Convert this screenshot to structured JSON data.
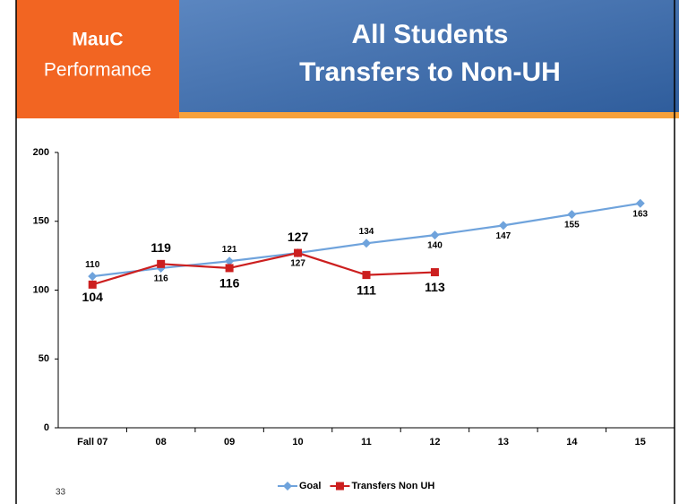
{
  "header": {
    "org": "MauC",
    "subtitle": "Performance",
    "title_line1": "All Students",
    "title_line2": "Transfers to Non-UH"
  },
  "slide_number": "33",
  "chart_data": {
    "type": "line",
    "categories": [
      "Fall 07",
      "08",
      "09",
      "10",
      "11",
      "12",
      "13",
      "14",
      "15"
    ],
    "series": [
      {
        "name": "Goal",
        "color": "#6fa3dc",
        "marker": "diamond",
        "values": [
          110,
          116,
          121,
          127,
          134,
          140,
          147,
          155,
          163
        ]
      },
      {
        "name": "Transfers Non UH",
        "color": "#cc1f1f",
        "marker": "square",
        "values": [
          104,
          119,
          116,
          127,
          111,
          113,
          null,
          null,
          null
        ]
      }
    ],
    "ylim": [
      0,
      200
    ],
    "yticks": [
      0,
      50,
      100,
      150,
      200
    ],
    "grid": false,
    "legend": "bottom"
  }
}
